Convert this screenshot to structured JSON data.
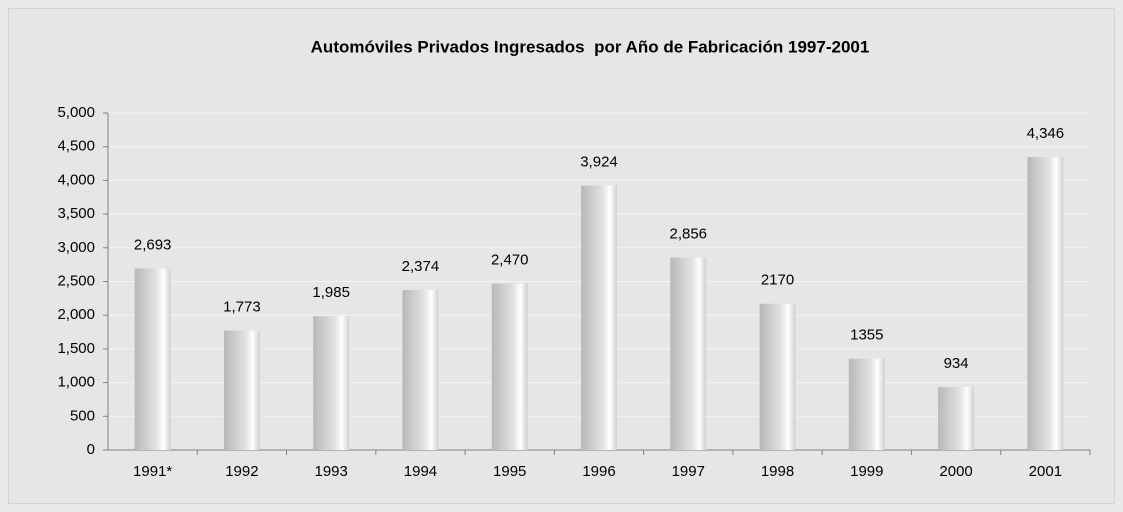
{
  "chart_data": {
    "type": "bar",
    "title": "Automóviles Privados Ingresados  por Año de Fabricación 1997-2001",
    "categories": [
      "1991*",
      "1992",
      "1993",
      "1994",
      "1995",
      "1996",
      "1997",
      "1998",
      "1999",
      "2000",
      "2001"
    ],
    "values": [
      2693,
      1773,
      1985,
      2374,
      2470,
      3924,
      2856,
      2170,
      1355,
      934,
      4346
    ],
    "value_labels": [
      "2,693",
      "1,773",
      "1,985",
      "2,374",
      "2,470",
      "3,924",
      "2,856",
      "2170",
      "1355",
      "934",
      "4,346"
    ],
    "color": "#c8c8c8",
    "ylim": [
      0,
      5000
    ],
    "yticks": [
      0,
      500,
      {
        "value": 1000,
        "label": "1,000"
      },
      {
        "value": 1500,
        "label": "1,500"
      },
      {
        "value": 2000,
        "label": "2,000"
      },
      {
        "value": 2500,
        "label": "2,500"
      },
      {
        "value": 3000,
        "label": "3,000"
      },
      {
        "value": 3500,
        "label": "3,500"
      },
      {
        "value": 4000,
        "label": "4,000"
      },
      {
        "value": 4500,
        "label": "4,500"
      },
      {
        "value": 5000,
        "label": "5,000"
      }
    ],
    "grid": true
  }
}
